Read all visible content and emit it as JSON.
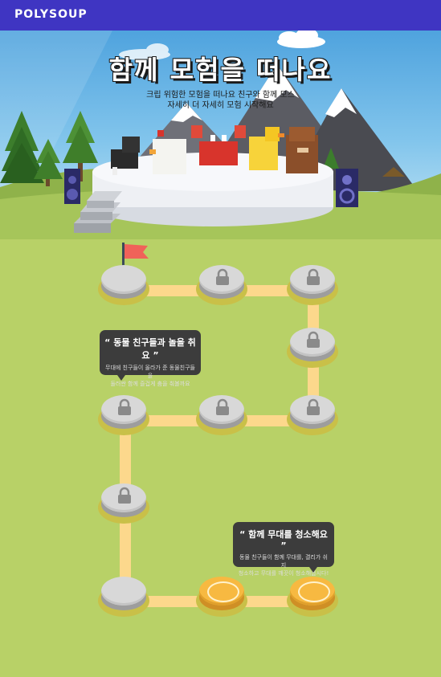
{
  "app": {
    "brand": "POLYSOUP"
  },
  "hero": {
    "title": "함께 모험을 떠나요",
    "subtitle_line1": "크립 위험한 모험을 떠나요 친구와 함께 모스",
    "subtitle_line2": "자세히 더 자세히 모험 시작해요"
  },
  "bubbles": {
    "first": {
      "title": "동물 친구들과 놀을 취요",
      "subtitle_line1": "무대에 친구들이 올라가 준 동물친구들을",
      "subtitle_line2": "둘러싼 함께 즐겁게 춤을 춰볼까요"
    },
    "second": {
      "title": "함께 무대를 청소해요",
      "subtitle_line1": "동물 친구들이 함께 무대를, 결리가 쉬지",
      "subtitle_line2": "청소하고 무대를 깨끗이 청소해봅시다!"
    }
  },
  "levels": [
    {
      "state": "start",
      "icon": "flag-icon"
    },
    {
      "state": "locked",
      "icon": "lock-icon"
    },
    {
      "state": "locked",
      "icon": "lock-icon"
    },
    {
      "state": "locked",
      "icon": "lock-icon"
    },
    {
      "state": "locked",
      "icon": "lock-icon"
    },
    {
      "state": "locked",
      "icon": "lock-icon"
    },
    {
      "state": "locked",
      "icon": "lock-icon"
    },
    {
      "state": "locked",
      "icon": "lock-icon"
    },
    {
      "state": "empty",
      "icon": ""
    },
    {
      "state": "coin",
      "icon": "coin-icon"
    },
    {
      "state": "coin",
      "icon": "coin-icon"
    }
  ],
  "colors": {
    "topbar": "#3f35c2",
    "grass": "#b8d167",
    "path": "#fcd88c",
    "tile": "#d8d8d8",
    "coin": "#f7b941",
    "bubble": "#3c3c3c"
  }
}
